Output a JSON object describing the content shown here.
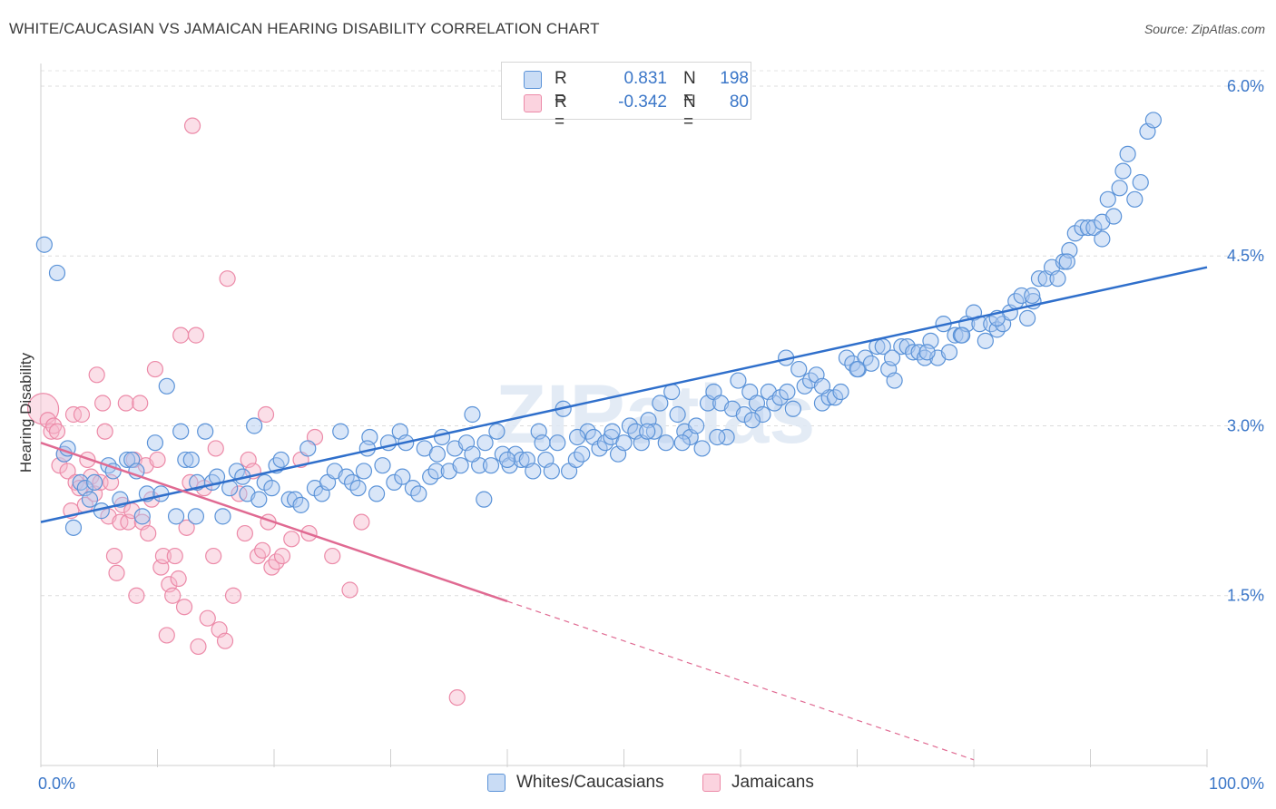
{
  "header": {
    "title": "WHITE/CAUCASIAN VS JAMAICAN HEARING DISABILITY CORRELATION CHART",
    "source": "Source: ZipAtlas.com"
  },
  "legend": {
    "rows": [
      {
        "r_label": "R =",
        "r_value": "0.831",
        "n_label": "N =",
        "n_value": "198",
        "color": "#aac8f0"
      },
      {
        "r_label": "R =",
        "r_value": "-0.342",
        "n_label": "N =",
        "n_value": "80",
        "color": "#f6b8cb"
      }
    ]
  },
  "bottom_legend": [
    {
      "label": "Whites/Caucasians",
      "color": "#aac8f0"
    },
    {
      "label": "Jamaicans",
      "color": "#f6b8cb"
    }
  ],
  "colors": {
    "blue_stroke": "#5b93d8",
    "blue_fill": "#aac8f0",
    "blue_line": "#2f6fcb",
    "pink_stroke": "#ec8aa8",
    "pink_fill": "#f6b8cb",
    "pink_line": "#e06a92",
    "axis_label": "#3a76c8"
  },
  "watermark": "ZIPatlas",
  "chart_data": {
    "type": "scatter",
    "title": "WHITE/CAUCASIAN VS JAMAICAN HEARING DISABILITY CORRELATION CHART",
    "ylabel": "Hearing Disability",
    "xlabel": "",
    "xlim": [
      0,
      100
    ],
    "ylim": [
      0,
      6.2
    ],
    "x_tick_labels": [
      "0.0%",
      "100.0%"
    ],
    "y_ticks": [
      1.5,
      3.0,
      4.5,
      6.0
    ],
    "y_tick_labels": [
      "1.5%",
      "3.0%",
      "4.5%",
      "6.0%"
    ],
    "grid": "horizontal dashed",
    "legend_position": "top-center",
    "series": [
      {
        "name": "Whites/Caucasians",
        "r": 0.831,
        "n": 198,
        "trend": {
          "x": [
            0,
            100
          ],
          "y": [
            2.15,
            4.4
          ]
        },
        "points": [
          [
            0.3,
            4.6
          ],
          [
            1.4,
            4.35
          ],
          [
            2.0,
            2.75
          ],
          [
            2.3,
            2.8
          ],
          [
            2.8,
            2.1
          ],
          [
            3.4,
            2.5
          ],
          [
            3.8,
            2.45
          ],
          [
            4.2,
            2.35
          ],
          [
            4.6,
            2.5
          ],
          [
            5.2,
            2.25
          ],
          [
            5.8,
            2.65
          ],
          [
            6.2,
            2.6
          ],
          [
            6.8,
            2.35
          ],
          [
            7.4,
            2.7
          ],
          [
            7.8,
            2.7
          ],
          [
            8.2,
            2.6
          ],
          [
            8.7,
            2.2
          ],
          [
            9.1,
            2.4
          ],
          [
            9.8,
            2.85
          ],
          [
            10.3,
            2.4
          ],
          [
            10.8,
            3.35
          ],
          [
            11.6,
            2.2
          ],
          [
            12.0,
            2.95
          ],
          [
            12.4,
            2.7
          ],
          [
            12.9,
            2.7
          ],
          [
            13.3,
            2.2
          ],
          [
            13.4,
            2.5
          ],
          [
            14.1,
            2.95
          ],
          [
            14.7,
            2.5
          ],
          [
            15.1,
            2.55
          ],
          [
            15.6,
            2.2
          ],
          [
            16.2,
            2.45
          ],
          [
            16.8,
            2.6
          ],
          [
            17.3,
            2.55
          ],
          [
            17.7,
            2.4
          ],
          [
            18.3,
            3.0
          ],
          [
            18.7,
            2.35
          ],
          [
            19.2,
            2.5
          ],
          [
            19.8,
            2.45
          ],
          [
            20.2,
            2.65
          ],
          [
            20.6,
            2.7
          ],
          [
            21.3,
            2.35
          ],
          [
            21.8,
            2.35
          ],
          [
            22.3,
            2.3
          ],
          [
            22.9,
            2.8
          ],
          [
            23.5,
            2.45
          ],
          [
            24.1,
            2.4
          ],
          [
            24.6,
            2.5
          ],
          [
            25.2,
            2.6
          ],
          [
            25.7,
            2.95
          ],
          [
            26.2,
            2.55
          ],
          [
            26.7,
            2.5
          ],
          [
            27.2,
            2.45
          ],
          [
            27.7,
            2.6
          ],
          [
            28.2,
            2.9
          ],
          [
            28.8,
            2.4
          ],
          [
            29.3,
            2.65
          ],
          [
            29.8,
            2.85
          ],
          [
            30.3,
            2.5
          ],
          [
            30.8,
            2.95
          ],
          [
            31.3,
            2.85
          ],
          [
            31.9,
            2.45
          ],
          [
            32.4,
            2.4
          ],
          [
            32.9,
            2.8
          ],
          [
            33.4,
            2.55
          ],
          [
            33.9,
            2.6
          ],
          [
            34.4,
            2.9
          ],
          [
            35.0,
            2.6
          ],
          [
            35.5,
            2.8
          ],
          [
            36.0,
            2.65
          ],
          [
            36.5,
            2.85
          ],
          [
            37.0,
            3.1
          ],
          [
            37.6,
            2.65
          ],
          [
            38.1,
            2.85
          ],
          [
            38.6,
            2.65
          ],
          [
            39.1,
            2.95
          ],
          [
            39.6,
            2.75
          ],
          [
            40.2,
            2.65
          ],
          [
            40.7,
            2.75
          ],
          [
            41.2,
            2.7
          ],
          [
            41.7,
            2.7
          ],
          [
            42.2,
            2.6
          ],
          [
            42.7,
            2.95
          ],
          [
            43.3,
            2.7
          ],
          [
            43.8,
            2.6
          ],
          [
            44.3,
            2.85
          ],
          [
            44.8,
            3.15
          ],
          [
            45.3,
            2.6
          ],
          [
            45.9,
            2.7
          ],
          [
            46.4,
            2.75
          ],
          [
            46.9,
            2.95
          ],
          [
            47.4,
            2.9
          ],
          [
            47.9,
            2.8
          ],
          [
            48.4,
            2.85
          ],
          [
            48.9,
            2.9
          ],
          [
            49.5,
            2.75
          ],
          [
            50.0,
            2.85
          ],
          [
            50.5,
            3.0
          ],
          [
            51.0,
            2.95
          ],
          [
            51.5,
            2.85
          ],
          [
            52.1,
            3.05
          ],
          [
            52.6,
            2.95
          ],
          [
            53.1,
            3.2
          ],
          [
            53.6,
            2.85
          ],
          [
            54.1,
            3.3
          ],
          [
            54.6,
            3.1
          ],
          [
            55.2,
            2.95
          ],
          [
            55.7,
            2.9
          ],
          [
            56.2,
            3.0
          ],
          [
            56.7,
            2.8
          ],
          [
            57.2,
            3.2
          ],
          [
            57.7,
            3.3
          ],
          [
            58.3,
            3.2
          ],
          [
            58.8,
            2.9
          ],
          [
            59.3,
            3.15
          ],
          [
            59.8,
            3.4
          ],
          [
            60.3,
            3.1
          ],
          [
            60.8,
            3.3
          ],
          [
            61.4,
            3.2
          ],
          [
            61.9,
            3.1
          ],
          [
            62.4,
            3.3
          ],
          [
            62.9,
            3.2
          ],
          [
            63.4,
            3.25
          ],
          [
            63.9,
            3.6
          ],
          [
            64.5,
            3.15
          ],
          [
            65.0,
            3.5
          ],
          [
            65.5,
            3.35
          ],
          [
            66.0,
            3.4
          ],
          [
            66.5,
            3.45
          ],
          [
            67.0,
            3.2
          ],
          [
            67.6,
            3.25
          ],
          [
            68.1,
            3.25
          ],
          [
            68.6,
            3.3
          ],
          [
            69.1,
            3.6
          ],
          [
            69.6,
            3.55
          ],
          [
            70.1,
            3.5
          ],
          [
            70.7,
            3.6
          ],
          [
            71.2,
            3.55
          ],
          [
            71.7,
            3.7
          ],
          [
            72.2,
            3.7
          ],
          [
            72.7,
            3.5
          ],
          [
            73.2,
            3.4
          ],
          [
            73.8,
            3.7
          ],
          [
            74.3,
            3.7
          ],
          [
            74.8,
            3.65
          ],
          [
            75.3,
            3.65
          ],
          [
            75.8,
            3.6
          ],
          [
            76.3,
            3.75
          ],
          [
            76.9,
            3.6
          ],
          [
            77.4,
            3.9
          ],
          [
            77.9,
            3.65
          ],
          [
            78.4,
            3.8
          ],
          [
            78.9,
            3.8
          ],
          [
            79.4,
            3.9
          ],
          [
            80.0,
            4.0
          ],
          [
            80.5,
            3.9
          ],
          [
            81.0,
            3.75
          ],
          [
            81.5,
            3.9
          ],
          [
            82.0,
            3.85
          ],
          [
            82.5,
            3.9
          ],
          [
            83.1,
            4.0
          ],
          [
            83.6,
            4.1
          ],
          [
            84.1,
            4.15
          ],
          [
            84.6,
            3.95
          ],
          [
            85.1,
            4.1
          ],
          [
            85.6,
            4.3
          ],
          [
            86.2,
            4.3
          ],
          [
            86.7,
            4.4
          ],
          [
            87.2,
            4.3
          ],
          [
            87.7,
            4.45
          ],
          [
            88.2,
            4.55
          ],
          [
            88.7,
            4.7
          ],
          [
            89.3,
            4.75
          ],
          [
            89.8,
            4.75
          ],
          [
            90.3,
            4.75
          ],
          [
            91.0,
            4.8
          ],
          [
            91.5,
            5.0
          ],
          [
            92.0,
            4.85
          ],
          [
            92.5,
            5.1
          ],
          [
            92.8,
            5.25
          ],
          [
            93.2,
            5.4
          ],
          [
            93.8,
            5.0
          ],
          [
            94.3,
            5.15
          ],
          [
            94.9,
            5.6
          ],
          [
            95.4,
            5.7
          ],
          [
            52.0,
            2.95
          ],
          [
            55.0,
            2.85
          ],
          [
            58.0,
            2.9
          ],
          [
            61.0,
            3.05
          ],
          [
            64.0,
            3.3
          ],
          [
            67.0,
            3.35
          ],
          [
            70.0,
            3.5
          ],
          [
            73.0,
            3.6
          ],
          [
            76.0,
            3.65
          ],
          [
            79.0,
            3.8
          ],
          [
            82.0,
            3.95
          ],
          [
            85.0,
            4.15
          ],
          [
            88.0,
            4.45
          ],
          [
            91.0,
            4.65
          ],
          [
            28.0,
            2.8
          ],
          [
            31.0,
            2.55
          ],
          [
            34.0,
            2.75
          ],
          [
            37.0,
            2.75
          ],
          [
            40.0,
            2.7
          ],
          [
            43.0,
            2.85
          ],
          [
            46.0,
            2.9
          ],
          [
            49.0,
            2.95
          ],
          [
            38.0,
            2.35
          ]
        ]
      },
      {
        "name": "Jamaicans",
        "r": -0.342,
        "n": 80,
        "trend": {
          "x": [
            0,
            40
          ],
          "y": [
            2.85,
            1.45
          ],
          "dashed_to": {
            "x": 80,
            "y": 0.05
          }
        },
        "points": [
          [
            0.2,
            3.15
          ],
          [
            0.6,
            3.05
          ],
          [
            0.9,
            2.95
          ],
          [
            1.1,
            3.0
          ],
          [
            1.4,
            2.95
          ],
          [
            1.6,
            2.65
          ],
          [
            2.0,
            2.75
          ],
          [
            2.3,
            2.6
          ],
          [
            2.6,
            2.25
          ],
          [
            2.8,
            3.1
          ],
          [
            3.0,
            2.5
          ],
          [
            3.3,
            2.45
          ],
          [
            3.5,
            3.1
          ],
          [
            3.8,
            2.3
          ],
          [
            4.0,
            2.7
          ],
          [
            4.3,
            2.55
          ],
          [
            4.6,
            2.4
          ],
          [
            4.8,
            3.45
          ],
          [
            5.1,
            2.5
          ],
          [
            5.3,
            3.2
          ],
          [
            5.5,
            2.95
          ],
          [
            5.8,
            2.2
          ],
          [
            6.0,
            2.5
          ],
          [
            6.3,
            1.85
          ],
          [
            6.5,
            1.7
          ],
          [
            6.8,
            2.15
          ],
          [
            7.0,
            2.3
          ],
          [
            7.3,
            3.2
          ],
          [
            7.5,
            2.15
          ],
          [
            7.8,
            2.25
          ],
          [
            8.0,
            2.7
          ],
          [
            8.2,
            1.5
          ],
          [
            8.5,
            3.2
          ],
          [
            8.7,
            2.15
          ],
          [
            9.0,
            2.65
          ],
          [
            9.2,
            2.05
          ],
          [
            9.5,
            2.35
          ],
          [
            9.8,
            3.5
          ],
          [
            10.0,
            2.7
          ],
          [
            10.3,
            1.75
          ],
          [
            10.5,
            1.85
          ],
          [
            10.8,
            1.15
          ],
          [
            11.0,
            1.6
          ],
          [
            11.3,
            1.5
          ],
          [
            11.5,
            1.85
          ],
          [
            11.8,
            1.65
          ],
          [
            12.0,
            3.8
          ],
          [
            12.3,
            1.4
          ],
          [
            12.5,
            2.1
          ],
          [
            12.8,
            2.5
          ],
          [
            13.0,
            5.65
          ],
          [
            13.3,
            3.8
          ],
          [
            13.5,
            1.05
          ],
          [
            14.0,
            2.45
          ],
          [
            14.3,
            1.3
          ],
          [
            14.8,
            1.85
          ],
          [
            15.0,
            2.8
          ],
          [
            15.3,
            1.2
          ],
          [
            15.8,
            1.1
          ],
          [
            16.0,
            4.3
          ],
          [
            16.5,
            1.5
          ],
          [
            17.0,
            2.4
          ],
          [
            17.5,
            2.05
          ],
          [
            17.8,
            2.7
          ],
          [
            18.2,
            2.6
          ],
          [
            18.6,
            1.85
          ],
          [
            19.0,
            1.9
          ],
          [
            19.3,
            3.1
          ],
          [
            19.5,
            2.15
          ],
          [
            19.8,
            1.75
          ],
          [
            20.2,
            1.8
          ],
          [
            20.7,
            1.85
          ],
          [
            21.5,
            2.0
          ],
          [
            22.3,
            2.7
          ],
          [
            23.0,
            2.05
          ],
          [
            23.5,
            2.9
          ],
          [
            25.0,
            1.85
          ],
          [
            26.5,
            1.55
          ],
          [
            27.5,
            2.15
          ],
          [
            35.7,
            0.6
          ]
        ]
      }
    ]
  }
}
